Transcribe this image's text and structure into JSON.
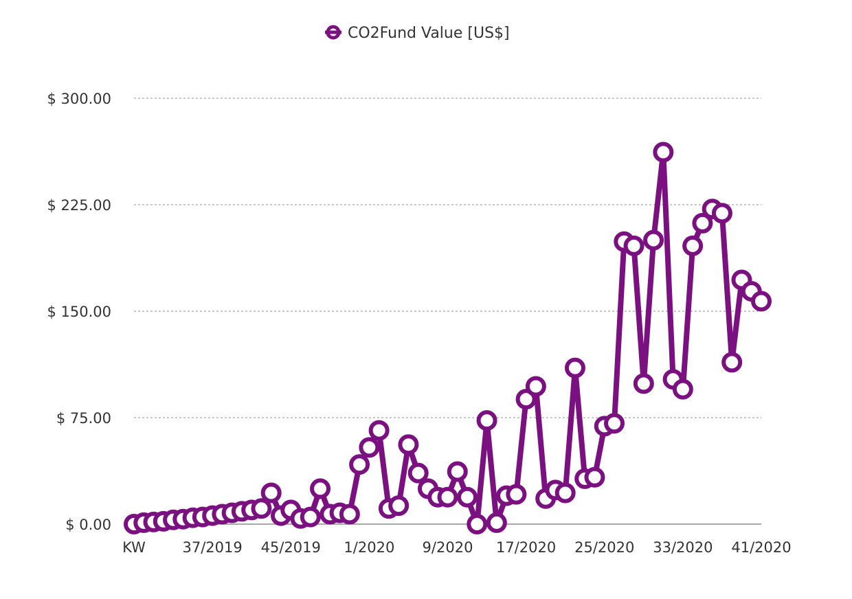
{
  "chart_data": {
    "type": "line",
    "x_first_label": "KW",
    "x_tick_labels": [
      "KW",
      "37/2019",
      "45/2019",
      "1/2020",
      "9/2020",
      "17/2020",
      "25/2020",
      "33/2020",
      "41/2020"
    ],
    "y_tick_labels": [
      "$ 0.00",
      "$ 75.00",
      "$ 150.00",
      "$ 225.00",
      "$ 300.00"
    ],
    "y_ticks": [
      0,
      75,
      150,
      225,
      300
    ],
    "ylim": [
      0,
      300
    ],
    "grid": "horizontal-dotted",
    "legend_position": "top-center",
    "colors": {
      "series": "#7b1080",
      "marker_fill": "#ffffff",
      "grid": "#a8a8a8",
      "axis": "#8c8c8c"
    },
    "series": [
      {
        "name": "CO2Fund Value [US$]",
        "values": [
          0,
          1,
          1.5,
          2,
          3,
          3.5,
          4.5,
          5,
          6,
          7,
          8,
          9,
          10,
          11,
          22,
          6,
          10,
          4,
          5,
          25,
          7,
          8,
          7,
          42,
          54,
          66,
          11,
          13,
          56,
          36,
          25,
          19,
          19,
          37,
          19,
          0,
          73,
          1,
          20,
          21,
          88,
          97,
          18,
          24,
          22,
          110,
          32,
          33,
          69,
          71,
          199,
          196,
          99,
          200,
          262,
          102,
          95,
          196,
          212,
          222,
          219,
          114,
          172,
          164,
          157
        ]
      }
    ]
  }
}
